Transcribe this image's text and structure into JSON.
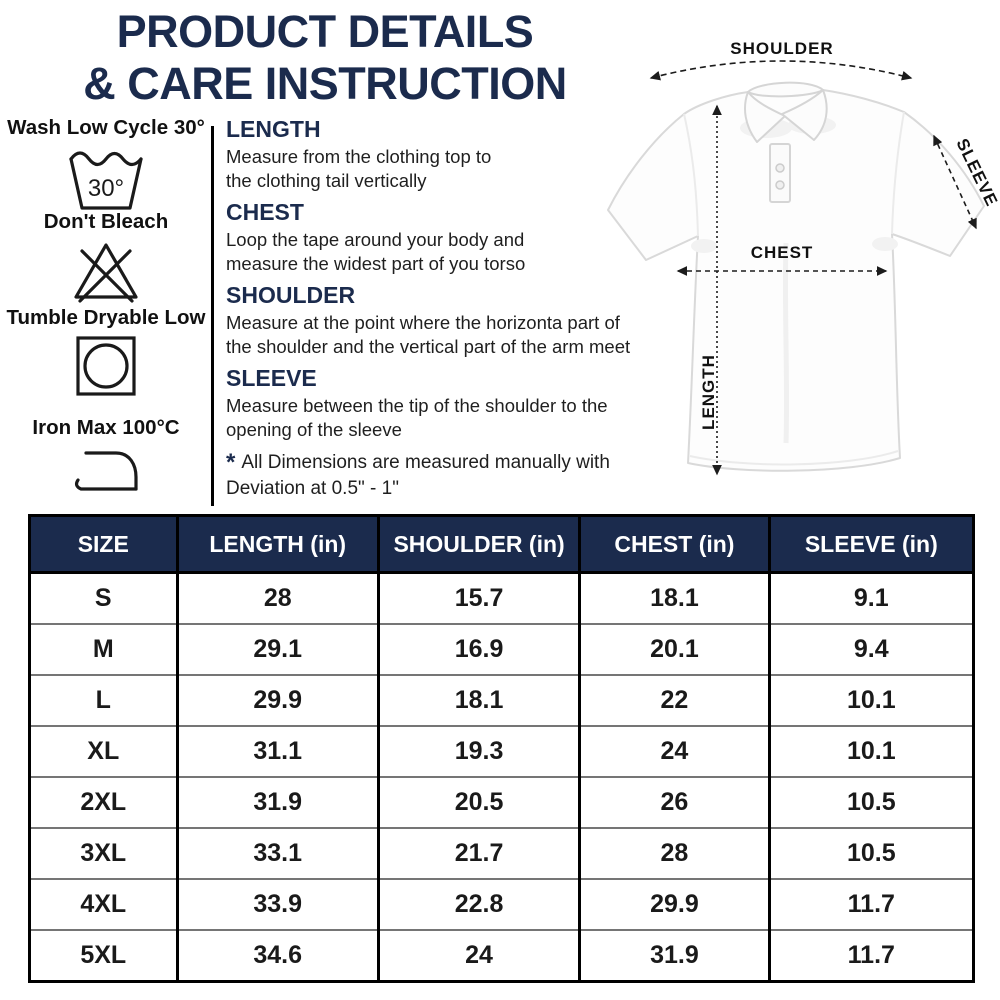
{
  "title": {
    "line1": "PRODUCT DETAILS",
    "line2": "& CARE INSTRUCTION"
  },
  "care": {
    "items": [
      {
        "label": "Wash Low Cycle 30°",
        "icon": "wash-tub-30-icon",
        "icon_text": "30°"
      },
      {
        "label": "Don't Bleach",
        "icon": "no-bleach-icon"
      },
      {
        "label": "Tumble Dryable Low",
        "icon": "tumble-dry-low-icon"
      },
      {
        "label": "Iron Max 100°C",
        "icon": "iron-max-100-icon"
      }
    ]
  },
  "measure_guide": {
    "sections": [
      {
        "heading": "LENGTH",
        "line1": "Measure from the clothing top to",
        "line2": "the clothing tail vertically"
      },
      {
        "heading": "CHEST",
        "line1": "Loop the tape around your body and",
        "line2": "measure the widest part of you torso"
      },
      {
        "heading": "SHOULDER",
        "line1": "Measure at the point where the horizonta part of",
        "line2": "the shoulder and the vertical part of the arm meet"
      },
      {
        "heading": "SLEEVE",
        "line1": "Measure between the tip of the shoulder to the",
        "line2": "opening of the sleeve"
      }
    ],
    "footnote": {
      "star": "*",
      "line1": "All Dimensions are measured manually with",
      "line2": "Deviation at 0.5\" - 1\""
    }
  },
  "diagram": {
    "labels": {
      "shoulder": "SHOULDER",
      "sleeve": "SLEEVE",
      "chest": "CHEST",
      "length": "LENGTH"
    }
  },
  "size_table": {
    "headers": [
      "SIZE",
      "LENGTH (in)",
      "SHOULDER (in)",
      "CHEST (in)",
      "SLEEVE (in)"
    ],
    "rows": [
      [
        "S",
        "28",
        "15.7",
        "18.1",
        "9.1"
      ],
      [
        "M",
        "29.1",
        "16.9",
        "20.1",
        "9.4"
      ],
      [
        "L",
        "29.9",
        "18.1",
        "22",
        "10.1"
      ],
      [
        "XL",
        "31.1",
        "19.3",
        "24",
        "10.1"
      ],
      [
        "2XL",
        "31.9",
        "20.5",
        "26",
        "10.5"
      ],
      [
        "3XL",
        "33.1",
        "21.7",
        "28",
        "10.5"
      ],
      [
        "4XL",
        "33.9",
        "22.8",
        "29.9",
        "11.7"
      ],
      [
        "5XL",
        "34.6",
        "24",
        "31.9",
        "11.7"
      ]
    ]
  },
  "colors": {
    "navy": "#1b2b4d",
    "table_header_bg": "#1b2b4d",
    "border_black": "#000000",
    "row_divider": "#757575"
  }
}
